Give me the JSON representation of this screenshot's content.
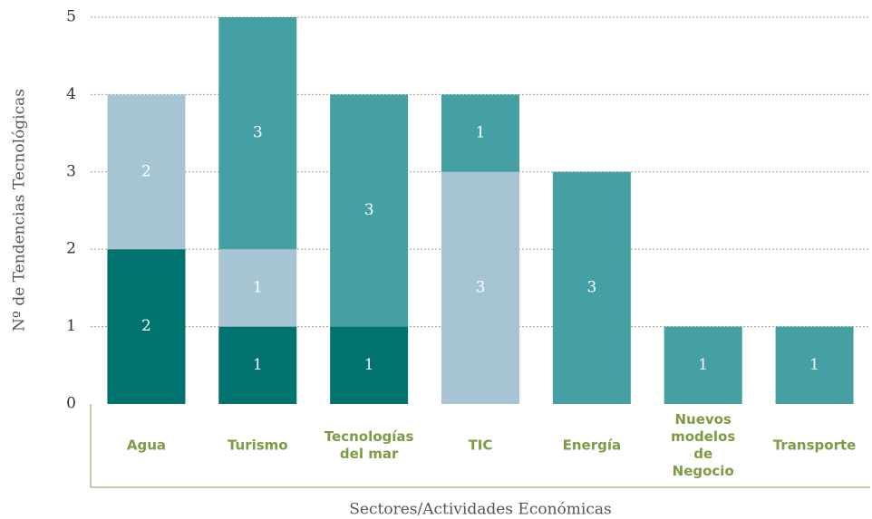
{
  "chart_data": {
    "type": "stacked_bar",
    "x_label": "Sectores/Actividades Económicas",
    "y_label": "Nº de Tendencias Tecnológicas",
    "categories": [
      "Agua",
      "Turismo",
      "Tecnologías del mar",
      "TIC",
      "Energía",
      "Nuevos modelos de Negocio",
      "Transporte"
    ],
    "series": [
      {
        "color": "#00736e",
        "values": [
          2,
          1,
          1,
          null,
          null,
          null,
          null
        ]
      },
      {
        "color": "#a6c4d3",
        "values": [
          2,
          1,
          null,
          3,
          null,
          null,
          null
        ]
      },
      {
        "color": "#45a0a3",
        "values": [
          null,
          3,
          3,
          1,
          3,
          1,
          1
        ]
      }
    ],
    "ylim": [
      0,
      5
    ],
    "yticks": [
      0,
      1,
      2,
      3,
      4,
      5
    ],
    "grid": true
  }
}
